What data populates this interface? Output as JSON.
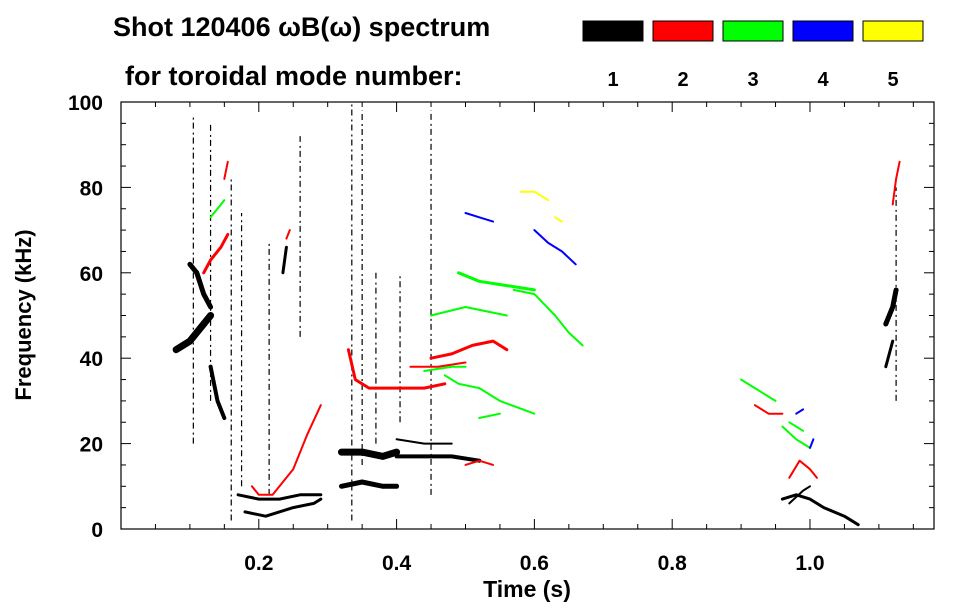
{
  "chart_data": {
    "type": "heatmap",
    "title_line1": "Shot 120406 ωB(ω) spectrum",
    "title_line2": "for toroidal mode number:",
    "xlabel": "Time (s)",
    "ylabel": "Frequency (kHz)",
    "xlim": [
      0,
      1.18
    ],
    "ylim": [
      0,
      100
    ],
    "x_ticks": [
      0.2,
      0.4,
      0.6,
      0.8,
      1.0
    ],
    "x_tick_labels": [
      "0.2",
      "0.4",
      "0.6",
      "0.8",
      "1.0"
    ],
    "y_ticks": [
      0,
      20,
      40,
      60,
      80,
      100
    ],
    "y_tick_labels": [
      "0",
      "20",
      "40",
      "60",
      "80",
      "100"
    ],
    "legend": [
      {
        "n": "1",
        "color": "#000000"
      },
      {
        "n": "2",
        "color": "#ff0000"
      },
      {
        "n": "3",
        "color": "#00ff00"
      },
      {
        "n": "4",
        "color": "#0000ff"
      },
      {
        "n": "5",
        "color": "#ffff00"
      }
    ],
    "series": [
      {
        "name": "n=1",
        "color": "#000000",
        "segments": [
          {
            "x": [
              0.08,
              0.1,
              0.12,
              0.13
            ],
            "y": [
              42,
              44,
              48,
              50
            ],
            "width": 7
          },
          {
            "x": [
              0.1,
              0.11,
              0.12,
              0.13
            ],
            "y": [
              62,
              60,
              55,
              52
            ],
            "width": 5
          },
          {
            "x": [
              0.13,
              0.14,
              0.15
            ],
            "y": [
              38,
              30,
              26
            ],
            "width": 4
          },
          {
            "x": [
              0.235,
              0.24
            ],
            "y": [
              60,
              66
            ],
            "width": 3
          },
          {
            "x": [
              0.18,
              0.21,
              0.25,
              0.28,
              0.29
            ],
            "y": [
              4,
              3,
              5,
              6,
              7
            ],
            "width": 3
          },
          {
            "x": [
              0.17,
              0.2,
              0.23,
              0.26,
              0.29
            ],
            "y": [
              8,
              7,
              7,
              8,
              8
            ],
            "width": 3
          },
          {
            "x": [
              0.32,
              0.35,
              0.38,
              0.4
            ],
            "y": [
              18,
              18,
              17,
              18
            ],
            "width": 7
          },
          {
            "x": [
              0.32,
              0.35,
              0.38,
              0.4
            ],
            "y": [
              10,
              11,
              10,
              10
            ],
            "width": 5
          },
          {
            "x": [
              0.4,
              0.44,
              0.48,
              0.52
            ],
            "y": [
              17,
              17,
              17,
              16
            ],
            "width": 4
          },
          {
            "x": [
              0.4,
              0.44,
              0.48
            ],
            "y": [
              21,
              20,
              20
            ],
            "width": 2
          },
          {
            "x": [
              0.96,
              0.98,
              1.0,
              1.02,
              1.05,
              1.07
            ],
            "y": [
              7,
              8,
              7,
              5,
              3,
              1
            ],
            "width": 3
          },
          {
            "x": [
              0.97,
              0.99,
              1.0
            ],
            "y": [
              6,
              9,
              10
            ],
            "width": 2
          },
          {
            "x": [
              1.11,
              1.12,
              1.125
            ],
            "y": [
              48,
              52,
              56
            ],
            "width": 5
          },
          {
            "x": [
              1.11,
              1.12
            ],
            "y": [
              38,
              44
            ],
            "width": 3
          }
        ]
      },
      {
        "name": "n=2",
        "color": "#ff0000",
        "segments": [
          {
            "x": [
              0.12,
              0.13,
              0.145,
              0.155
            ],
            "y": [
              60,
              63,
              66,
              69
            ],
            "width": 3
          },
          {
            "x": [
              0.15,
              0.155
            ],
            "y": [
              82,
              86
            ],
            "width": 2
          },
          {
            "x": [
              0.19,
              0.2,
              0.22,
              0.25,
              0.27,
              0.29
            ],
            "y": [
              10,
              8,
              8,
              14,
              22,
              29
            ],
            "width": 2
          },
          {
            "x": [
              0.24,
              0.245
            ],
            "y": [
              68,
              70
            ],
            "width": 2
          },
          {
            "x": [
              0.33,
              0.34,
              0.36,
              0.4,
              0.44,
              0.47
            ],
            "y": [
              42,
              35,
              33,
              33,
              33,
              34
            ],
            "width": 3
          },
          {
            "x": [
              0.45,
              0.48,
              0.51,
              0.54,
              0.56
            ],
            "y": [
              40,
              41,
              43,
              44,
              42
            ],
            "width": 3
          },
          {
            "x": [
              0.42,
              0.46,
              0.5
            ],
            "y": [
              38,
              38,
              39
            ],
            "width": 2
          },
          {
            "x": [
              0.92,
              0.94,
              0.96
            ],
            "y": [
              29,
              27,
              27
            ],
            "width": 2
          },
          {
            "x": [
              0.97,
              0.985,
              1.0,
              1.01
            ],
            "y": [
              12,
              16,
              14,
              12
            ],
            "width": 2
          },
          {
            "x": [
              0.5,
              0.52,
              0.54
            ],
            "y": [
              15,
              16,
              15
            ],
            "width": 2
          },
          {
            "x": [
              1.12,
              1.125,
              1.13
            ],
            "y": [
              76,
              82,
              86
            ],
            "width": 2
          }
        ]
      },
      {
        "name": "n=3",
        "color": "#00ff00",
        "segments": [
          {
            "x": [
              0.13,
              0.14,
              0.15
            ],
            "y": [
              73,
              75,
              77
            ],
            "width": 2
          },
          {
            "x": [
              0.45,
              0.5,
              0.56
            ],
            "y": [
              50,
              52,
              50
            ],
            "width": 2
          },
          {
            "x": [
              0.49,
              0.52,
              0.56,
              0.6
            ],
            "y": [
              60,
              58,
              57,
              56
            ],
            "width": 3
          },
          {
            "x": [
              0.57,
              0.6,
              0.63,
              0.65,
              0.67
            ],
            "y": [
              56,
              55,
              50,
              46,
              43
            ],
            "width": 2
          },
          {
            "x": [
              0.44,
              0.48,
              0.5
            ],
            "y": [
              37,
              38,
              38
            ],
            "width": 2
          },
          {
            "x": [
              0.47,
              0.49,
              0.52,
              0.55,
              0.6
            ],
            "y": [
              36,
              34,
              33,
              30,
              27
            ],
            "width": 2
          },
          {
            "x": [
              0.9,
              0.92,
              0.94,
              0.95
            ],
            "y": [
              35,
              33,
              31,
              30
            ],
            "width": 2
          },
          {
            "x": [
              0.96,
              0.98,
              1.0
            ],
            "y": [
              24,
              21,
              19
            ],
            "width": 2
          },
          {
            "x": [
              0.97,
              0.99
            ],
            "y": [
              25,
              23
            ],
            "width": 2
          },
          {
            "x": [
              0.52,
              0.55
            ],
            "y": [
              26,
              27
            ],
            "width": 2
          }
        ]
      },
      {
        "name": "n=4",
        "color": "#0000ff",
        "segments": [
          {
            "x": [
              0.5,
              0.52,
              0.54
            ],
            "y": [
              74,
              73,
              72
            ],
            "width": 2
          },
          {
            "x": [
              0.6,
              0.62,
              0.64,
              0.66
            ],
            "y": [
              70,
              67,
              65,
              62
            ],
            "width": 2
          },
          {
            "x": [
              0.98,
              0.99
            ],
            "y": [
              27,
              28
            ],
            "width": 2
          },
          {
            "x": [
              1.0,
              1.005
            ],
            "y": [
              19,
              21
            ],
            "width": 2
          }
        ]
      },
      {
        "name": "n=5",
        "color": "#ffff00",
        "segments": [
          {
            "x": [
              0.58,
              0.6,
              0.62
            ],
            "y": [
              79,
              79,
              77
            ],
            "width": 2
          },
          {
            "x": [
              0.63,
              0.64
            ],
            "y": [
              73,
              72
            ],
            "width": 2
          }
        ]
      }
    ],
    "streaks": [
      {
        "x": 0.105,
        "y": [
          20,
          97
        ],
        "color": "#000000"
      },
      {
        "x": 0.13,
        "y": [
          30,
          95
        ],
        "color": "#000000"
      },
      {
        "x": 0.16,
        "y": [
          2,
          82
        ],
        "color": "#000000"
      },
      {
        "x": 0.175,
        "y": [
          10,
          74
        ],
        "color": "#000000"
      },
      {
        "x": 0.215,
        "y": [
          8,
          67
        ],
        "color": "#000000"
      },
      {
        "x": 0.26,
        "y": [
          45,
          92
        ],
        "color": "#000000"
      },
      {
        "x": 0.335,
        "y": [
          2,
          100
        ],
        "color": "#000000"
      },
      {
        "x": 0.35,
        "y": [
          15,
          98
        ],
        "color": "#000000"
      },
      {
        "x": 0.37,
        "y": [
          20,
          60
        ],
        "color": "#000000"
      },
      {
        "x": 0.405,
        "y": [
          25,
          60
        ],
        "color": "#000000"
      },
      {
        "x": 0.45,
        "y": [
          8,
          98
        ],
        "color": "#000000"
      },
      {
        "x": 1.125,
        "y": [
          30,
          80
        ],
        "color": "#000000"
      }
    ]
  }
}
